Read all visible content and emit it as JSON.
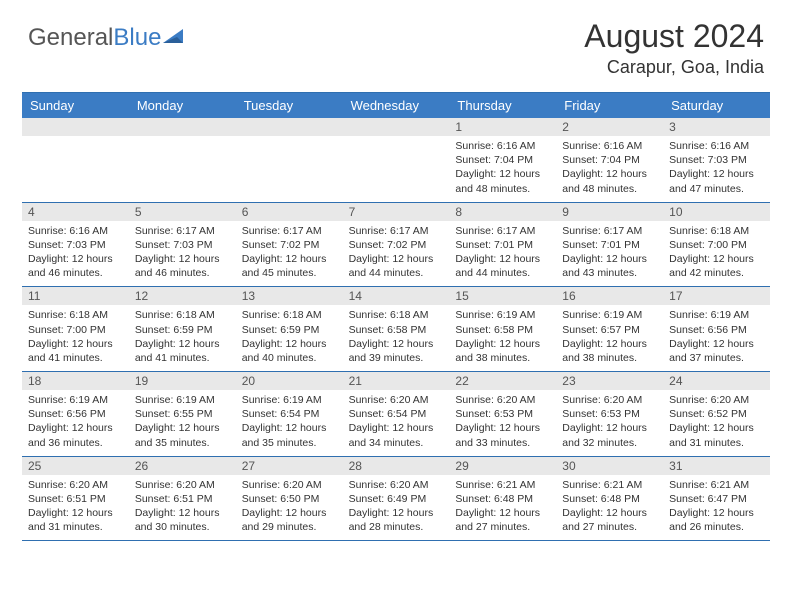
{
  "logo": {
    "text_general": "General",
    "text_blue": "Blue"
  },
  "title": "August 2024",
  "location": "Carapur, Goa, India",
  "colors": {
    "header_bg": "#3b7cc4",
    "border": "#2f6fb0",
    "num_bg": "#e8e8e8",
    "text": "#333333"
  },
  "day_names": [
    "Sunday",
    "Monday",
    "Tuesday",
    "Wednesday",
    "Thursday",
    "Friday",
    "Saturday"
  ],
  "weeks": [
    [
      null,
      null,
      null,
      null,
      {
        "n": "1",
        "sr": "Sunrise: 6:16 AM",
        "ss": "Sunset: 7:04 PM",
        "dl": "Daylight: 12 hours and 48 minutes."
      },
      {
        "n": "2",
        "sr": "Sunrise: 6:16 AM",
        "ss": "Sunset: 7:04 PM",
        "dl": "Daylight: 12 hours and 48 minutes."
      },
      {
        "n": "3",
        "sr": "Sunrise: 6:16 AM",
        "ss": "Sunset: 7:03 PM",
        "dl": "Daylight: 12 hours and 47 minutes."
      }
    ],
    [
      {
        "n": "4",
        "sr": "Sunrise: 6:16 AM",
        "ss": "Sunset: 7:03 PM",
        "dl": "Daylight: 12 hours and 46 minutes."
      },
      {
        "n": "5",
        "sr": "Sunrise: 6:17 AM",
        "ss": "Sunset: 7:03 PM",
        "dl": "Daylight: 12 hours and 46 minutes."
      },
      {
        "n": "6",
        "sr": "Sunrise: 6:17 AM",
        "ss": "Sunset: 7:02 PM",
        "dl": "Daylight: 12 hours and 45 minutes."
      },
      {
        "n": "7",
        "sr": "Sunrise: 6:17 AM",
        "ss": "Sunset: 7:02 PM",
        "dl": "Daylight: 12 hours and 44 minutes."
      },
      {
        "n": "8",
        "sr": "Sunrise: 6:17 AM",
        "ss": "Sunset: 7:01 PM",
        "dl": "Daylight: 12 hours and 44 minutes."
      },
      {
        "n": "9",
        "sr": "Sunrise: 6:17 AM",
        "ss": "Sunset: 7:01 PM",
        "dl": "Daylight: 12 hours and 43 minutes."
      },
      {
        "n": "10",
        "sr": "Sunrise: 6:18 AM",
        "ss": "Sunset: 7:00 PM",
        "dl": "Daylight: 12 hours and 42 minutes."
      }
    ],
    [
      {
        "n": "11",
        "sr": "Sunrise: 6:18 AM",
        "ss": "Sunset: 7:00 PM",
        "dl": "Daylight: 12 hours and 41 minutes."
      },
      {
        "n": "12",
        "sr": "Sunrise: 6:18 AM",
        "ss": "Sunset: 6:59 PM",
        "dl": "Daylight: 12 hours and 41 minutes."
      },
      {
        "n": "13",
        "sr": "Sunrise: 6:18 AM",
        "ss": "Sunset: 6:59 PM",
        "dl": "Daylight: 12 hours and 40 minutes."
      },
      {
        "n": "14",
        "sr": "Sunrise: 6:18 AM",
        "ss": "Sunset: 6:58 PM",
        "dl": "Daylight: 12 hours and 39 minutes."
      },
      {
        "n": "15",
        "sr": "Sunrise: 6:19 AM",
        "ss": "Sunset: 6:58 PM",
        "dl": "Daylight: 12 hours and 38 minutes."
      },
      {
        "n": "16",
        "sr": "Sunrise: 6:19 AM",
        "ss": "Sunset: 6:57 PM",
        "dl": "Daylight: 12 hours and 38 minutes."
      },
      {
        "n": "17",
        "sr": "Sunrise: 6:19 AM",
        "ss": "Sunset: 6:56 PM",
        "dl": "Daylight: 12 hours and 37 minutes."
      }
    ],
    [
      {
        "n": "18",
        "sr": "Sunrise: 6:19 AM",
        "ss": "Sunset: 6:56 PM",
        "dl": "Daylight: 12 hours and 36 minutes."
      },
      {
        "n": "19",
        "sr": "Sunrise: 6:19 AM",
        "ss": "Sunset: 6:55 PM",
        "dl": "Daylight: 12 hours and 35 minutes."
      },
      {
        "n": "20",
        "sr": "Sunrise: 6:19 AM",
        "ss": "Sunset: 6:54 PM",
        "dl": "Daylight: 12 hours and 35 minutes."
      },
      {
        "n": "21",
        "sr": "Sunrise: 6:20 AM",
        "ss": "Sunset: 6:54 PM",
        "dl": "Daylight: 12 hours and 34 minutes."
      },
      {
        "n": "22",
        "sr": "Sunrise: 6:20 AM",
        "ss": "Sunset: 6:53 PM",
        "dl": "Daylight: 12 hours and 33 minutes."
      },
      {
        "n": "23",
        "sr": "Sunrise: 6:20 AM",
        "ss": "Sunset: 6:53 PM",
        "dl": "Daylight: 12 hours and 32 minutes."
      },
      {
        "n": "24",
        "sr": "Sunrise: 6:20 AM",
        "ss": "Sunset: 6:52 PM",
        "dl": "Daylight: 12 hours and 31 minutes."
      }
    ],
    [
      {
        "n": "25",
        "sr": "Sunrise: 6:20 AM",
        "ss": "Sunset: 6:51 PM",
        "dl": "Daylight: 12 hours and 31 minutes."
      },
      {
        "n": "26",
        "sr": "Sunrise: 6:20 AM",
        "ss": "Sunset: 6:51 PM",
        "dl": "Daylight: 12 hours and 30 minutes."
      },
      {
        "n": "27",
        "sr": "Sunrise: 6:20 AM",
        "ss": "Sunset: 6:50 PM",
        "dl": "Daylight: 12 hours and 29 minutes."
      },
      {
        "n": "28",
        "sr": "Sunrise: 6:20 AM",
        "ss": "Sunset: 6:49 PM",
        "dl": "Daylight: 12 hours and 28 minutes."
      },
      {
        "n": "29",
        "sr": "Sunrise: 6:21 AM",
        "ss": "Sunset: 6:48 PM",
        "dl": "Daylight: 12 hours and 27 minutes."
      },
      {
        "n": "30",
        "sr": "Sunrise: 6:21 AM",
        "ss": "Sunset: 6:48 PM",
        "dl": "Daylight: 12 hours and 27 minutes."
      },
      {
        "n": "31",
        "sr": "Sunrise: 6:21 AM",
        "ss": "Sunset: 6:47 PM",
        "dl": "Daylight: 12 hours and 26 minutes."
      }
    ]
  ]
}
